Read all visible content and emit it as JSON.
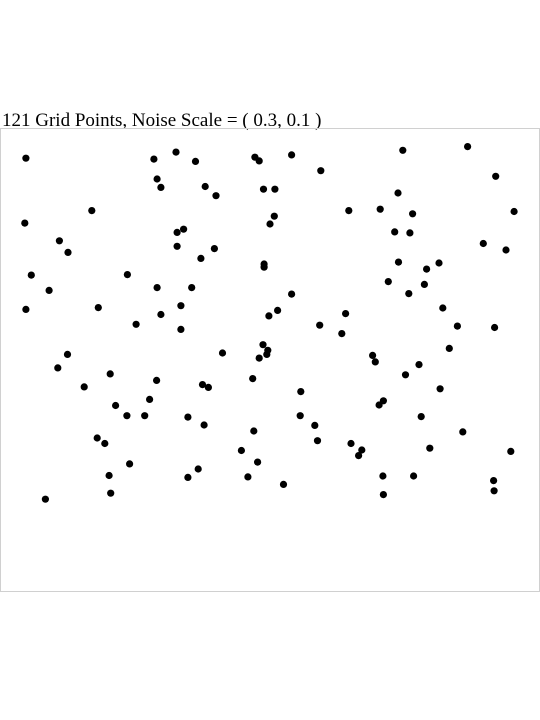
{
  "chart_data": {
    "type": "scatter",
    "title": "121 Grid Points, Noise Scale = ( 0.3, 0.1 )",
    "xlabel": "",
    "ylabel": "",
    "xlim": [
      0,
      1
    ],
    "ylim": [
      0,
      1
    ],
    "axes_visible": false,
    "grid": false,
    "legend": "none",
    "marker_color": "#000000",
    "frame_color": "#d0d0d0",
    "points": [
      [
        0.048,
        0.935
      ],
      [
        0.326,
        0.948
      ],
      [
        0.285,
        0.933
      ],
      [
        0.362,
        0.928
      ],
      [
        0.472,
        0.937
      ],
      [
        0.48,
        0.929
      ],
      [
        0.54,
        0.942
      ],
      [
        0.594,
        0.908
      ],
      [
        0.746,
        0.952
      ],
      [
        0.866,
        0.96
      ],
      [
        0.918,
        0.896
      ],
      [
        0.291,
        0.89
      ],
      [
        0.298,
        0.872
      ],
      [
        0.38,
        0.874
      ],
      [
        0.4,
        0.854
      ],
      [
        0.488,
        0.868
      ],
      [
        0.509,
        0.868
      ],
      [
        0.737,
        0.86
      ],
      [
        0.17,
        0.822
      ],
      [
        0.046,
        0.795
      ],
      [
        0.646,
        0.822
      ],
      [
        0.704,
        0.825
      ],
      [
        0.764,
        0.815
      ],
      [
        0.952,
        0.82
      ],
      [
        0.508,
        0.81
      ],
      [
        0.5,
        0.793
      ],
      [
        0.34,
        0.782
      ],
      [
        0.328,
        0.775
      ],
      [
        0.11,
        0.757
      ],
      [
        0.731,
        0.776
      ],
      [
        0.759,
        0.774
      ],
      [
        0.126,
        0.732
      ],
      [
        0.328,
        0.745
      ],
      [
        0.397,
        0.74
      ],
      [
        0.895,
        0.751
      ],
      [
        0.937,
        0.737
      ],
      [
        0.372,
        0.719
      ],
      [
        0.489,
        0.707
      ],
      [
        0.489,
        0.7
      ],
      [
        0.738,
        0.711
      ],
      [
        0.79,
        0.696
      ],
      [
        0.813,
        0.709
      ],
      [
        0.058,
        0.683
      ],
      [
        0.236,
        0.684
      ],
      [
        0.719,
        0.669
      ],
      [
        0.091,
        0.65
      ],
      [
        0.291,
        0.656
      ],
      [
        0.355,
        0.656
      ],
      [
        0.786,
        0.663
      ],
      [
        0.54,
        0.642
      ],
      [
        0.757,
        0.643
      ],
      [
        0.514,
        0.607
      ],
      [
        0.182,
        0.613
      ],
      [
        0.048,
        0.609
      ],
      [
        0.335,
        0.617
      ],
      [
        0.298,
        0.598
      ],
      [
        0.498,
        0.595
      ],
      [
        0.64,
        0.6
      ],
      [
        0.82,
        0.612
      ],
      [
        0.252,
        0.577
      ],
      [
        0.592,
        0.575
      ],
      [
        0.335,
        0.566
      ],
      [
        0.847,
        0.573
      ],
      [
        0.916,
        0.57
      ],
      [
        0.633,
        0.557
      ],
      [
        0.487,
        0.533
      ],
      [
        0.496,
        0.521
      ],
      [
        0.412,
        0.515
      ],
      [
        0.494,
        0.512
      ],
      [
        0.125,
        0.512
      ],
      [
        0.48,
        0.504
      ],
      [
        0.69,
        0.51
      ],
      [
        0.832,
        0.525
      ],
      [
        0.107,
        0.483
      ],
      [
        0.204,
        0.47
      ],
      [
        0.695,
        0.496
      ],
      [
        0.776,
        0.49
      ],
      [
        0.156,
        0.442
      ],
      [
        0.29,
        0.456
      ],
      [
        0.375,
        0.447
      ],
      [
        0.468,
        0.46
      ],
      [
        0.751,
        0.468
      ],
      [
        0.386,
        0.441
      ],
      [
        0.557,
        0.432
      ],
      [
        0.815,
        0.438
      ],
      [
        0.277,
        0.415
      ],
      [
        0.214,
        0.402
      ],
      [
        0.71,
        0.412
      ],
      [
        0.702,
        0.403
      ],
      [
        0.348,
        0.377
      ],
      [
        0.556,
        0.38
      ],
      [
        0.78,
        0.378
      ],
      [
        0.268,
        0.38
      ],
      [
        0.235,
        0.38
      ],
      [
        0.378,
        0.36
      ],
      [
        0.47,
        0.347
      ],
      [
        0.583,
        0.359
      ],
      [
        0.857,
        0.345
      ],
      [
        0.18,
        0.332
      ],
      [
        0.194,
        0.32
      ],
      [
        0.588,
        0.326
      ],
      [
        0.65,
        0.32
      ],
      [
        0.67,
        0.306
      ],
      [
        0.796,
        0.31
      ],
      [
        0.447,
        0.305
      ],
      [
        0.477,
        0.28
      ],
      [
        0.664,
        0.294
      ],
      [
        0.946,
        0.303
      ],
      [
        0.24,
        0.276
      ],
      [
        0.367,
        0.265
      ],
      [
        0.202,
        0.251
      ],
      [
        0.459,
        0.248
      ],
      [
        0.348,
        0.247
      ],
      [
        0.709,
        0.25
      ],
      [
        0.766,
        0.25
      ],
      [
        0.525,
        0.232
      ],
      [
        0.914,
        0.24
      ],
      [
        0.084,
        0.2
      ],
      [
        0.205,
        0.213
      ],
      [
        0.71,
        0.21
      ],
      [
        0.915,
        0.218
      ]
    ]
  }
}
